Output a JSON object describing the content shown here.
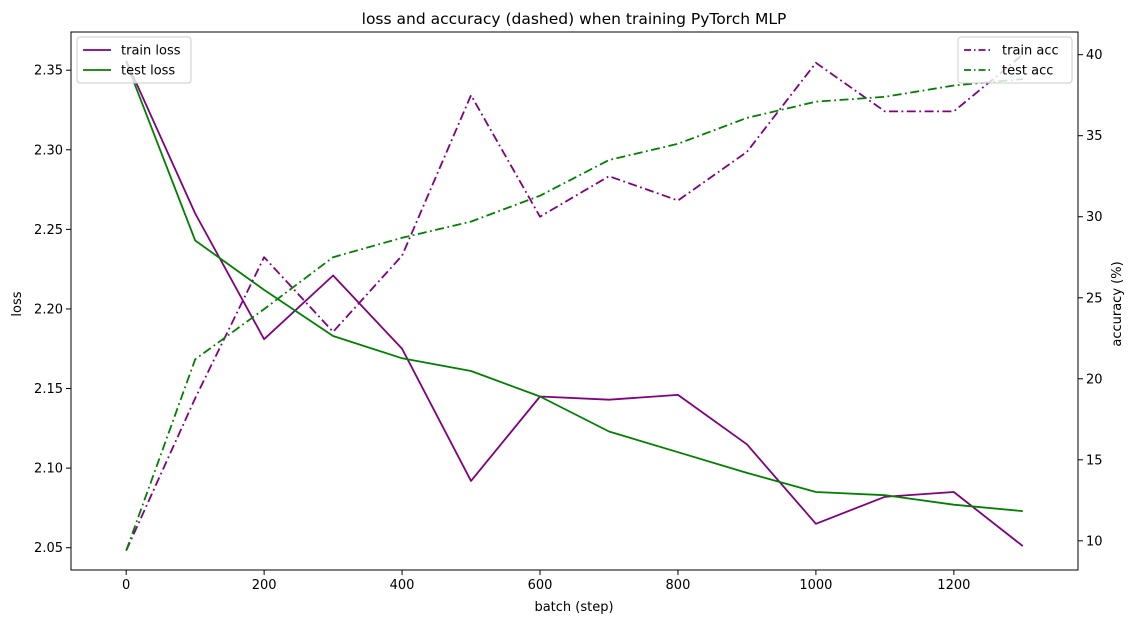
{
  "chart_data": {
    "type": "line",
    "title": "loss and accuracy (dashed) when training PyTorch MLP",
    "xlabel": "batch (step)",
    "ylabel_left": "loss",
    "ylabel_right": "accuracy (%)",
    "xlim": [
      -80,
      1380
    ],
    "ylim_left": [
      2.036,
      2.374
    ],
    "ylim_right": [
      8.2,
      41.4
    ],
    "x_ticks": [
      0,
      200,
      400,
      600,
      800,
      1000,
      1200
    ],
    "y_left_ticks": [
      2.05,
      2.1,
      2.15,
      2.2,
      2.25,
      2.3,
      2.35
    ],
    "y_right_ticks": [
      10,
      15,
      20,
      25,
      30,
      35,
      40
    ],
    "y_left_tick_labels": [
      "2.05",
      "2.10",
      "2.15",
      "2.20",
      "2.25",
      "2.30",
      "2.35"
    ],
    "x": [
      0,
      100,
      200,
      300,
      400,
      500,
      600,
      700,
      800,
      900,
      1000,
      1100,
      1200,
      1300
    ],
    "series": [
      {
        "name": "train loss",
        "axis": "left",
        "color": "#800080",
        "style": "solid",
        "values": [
          2.356,
          2.26,
          2.181,
          2.221,
          2.175,
          2.092,
          2.145,
          2.143,
          2.146,
          2.115,
          2.065,
          2.082,
          2.085,
          2.051
        ]
      },
      {
        "name": "test loss",
        "axis": "left",
        "color": "#008000",
        "style": "solid",
        "values": [
          2.355,
          2.243,
          2.212,
          2.183,
          2.169,
          2.161,
          2.145,
          2.123,
          2.11,
          2.097,
          2.085,
          2.083,
          2.077,
          2.073
        ]
      },
      {
        "name": "train acc",
        "axis": "right",
        "color": "#800080",
        "style": "dashdot",
        "values": [
          9.4,
          18.8,
          27.5,
          22.9,
          27.6,
          37.5,
          30.0,
          32.5,
          31.0,
          34.0,
          39.5,
          36.5,
          36.5,
          40.0
        ]
      },
      {
        "name": "test acc",
        "axis": "right",
        "color": "#008000",
        "style": "dashdot",
        "values": [
          9.4,
          21.2,
          24.3,
          27.5,
          28.7,
          29.7,
          31.3,
          33.5,
          34.5,
          36.1,
          37.1,
          37.4,
          38.1,
          38.5
        ]
      }
    ],
    "legend_left": {
      "position": "top-left",
      "entries": [
        "train loss",
        "test loss"
      ]
    },
    "legend_right": {
      "position": "top-right",
      "entries": [
        "train acc",
        "test acc"
      ]
    },
    "grid": false
  }
}
